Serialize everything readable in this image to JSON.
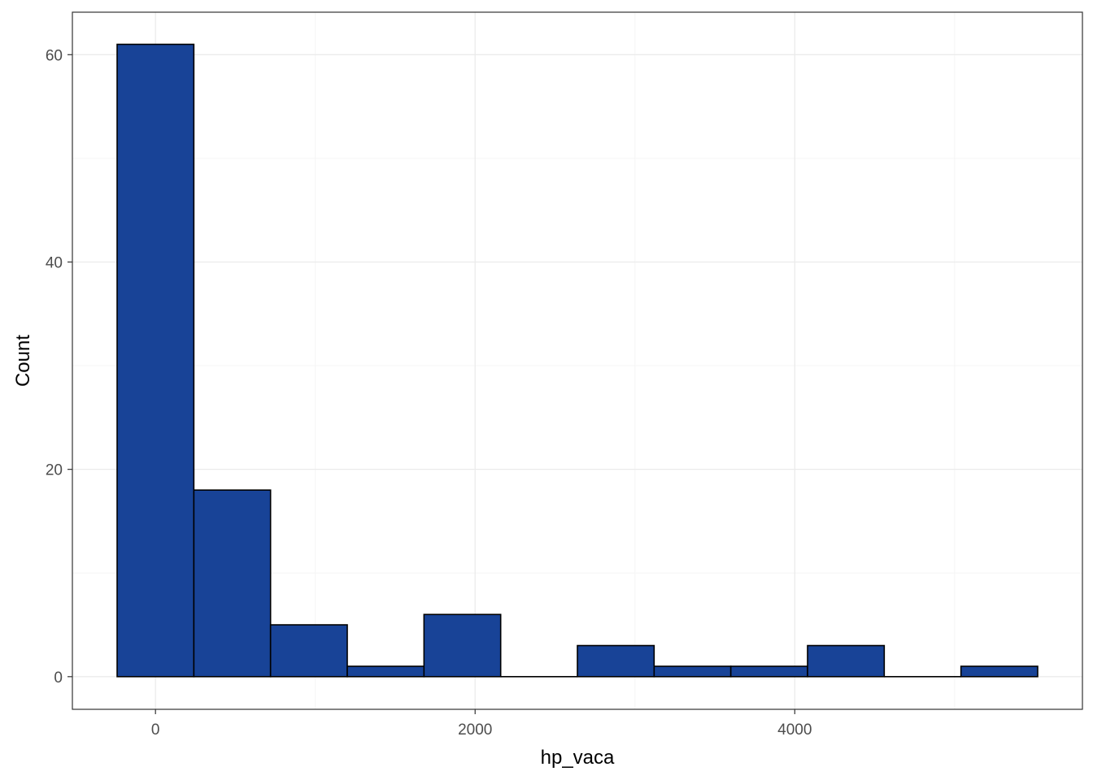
{
  "chart_data": {
    "type": "bar",
    "title": "",
    "xlabel": "hp_vaca",
    "ylabel": "Count",
    "bin_edges": [
      -240,
      240,
      720,
      1200,
      1680,
      2160,
      2640,
      3120,
      3600,
      4080,
      4560,
      5040,
      5520
    ],
    "values": [
      61,
      18,
      5,
      1,
      6,
      0,
      3,
      1,
      1,
      3,
      0,
      1
    ],
    "xlim": [
      -520,
      5800
    ],
    "ylim": [
      -3.15,
      64.1
    ],
    "x_ticks": [
      0,
      2000,
      4000
    ],
    "x_tick_labels": [
      "0",
      "2000",
      "4000"
    ],
    "y_ticks": [
      0,
      20,
      40,
      60
    ],
    "y_tick_labels": [
      "0",
      "20",
      "40",
      "60"
    ],
    "grid": true,
    "legend": "none",
    "colors": {
      "bar_fill": "#184397",
      "bar_stroke": "#000000",
      "panel_border": "#333333",
      "major_grid": "#ebebeb",
      "minor_grid": "#f5f5f5"
    }
  }
}
